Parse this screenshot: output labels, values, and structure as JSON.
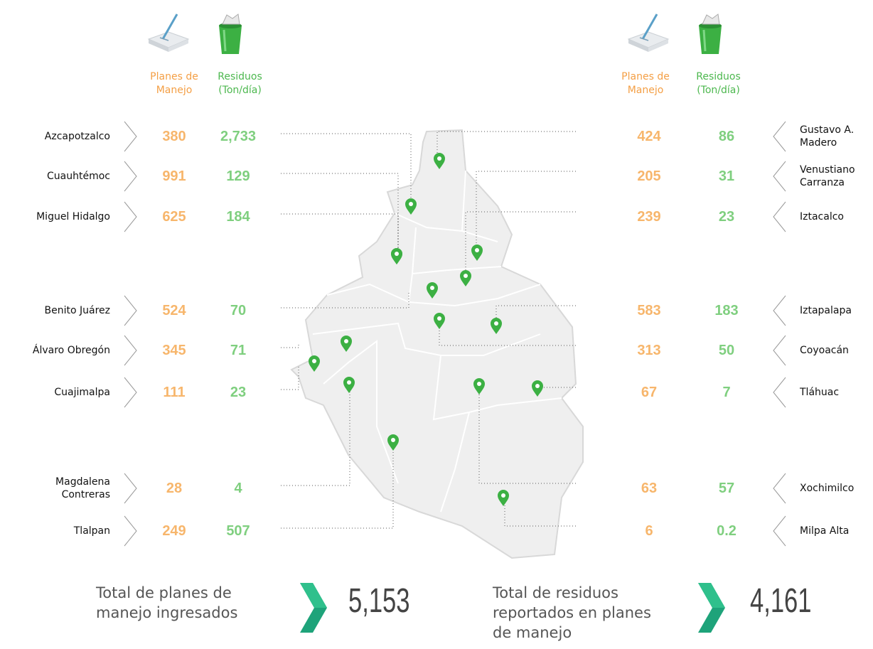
{
  "left_header": {
    "planes": "Planes de Manejo",
    "residuos": "Residuos (Ton/día)"
  },
  "right_header": {
    "planes": "Planes de Manejo",
    "residuos": "Residuos (Ton/día)"
  },
  "left_rows": [
    {
      "name": "Azcapotzalco",
      "planes": "380",
      "residuos": "2,733"
    },
    {
      "name": "Cuauhtémoc",
      "planes": "991",
      "residuos": "129"
    },
    {
      "name": "Miguel Hidalgo",
      "planes": "625",
      "residuos": "184"
    },
    {
      "name": "Benito Juárez",
      "planes": "524",
      "residuos": "70"
    },
    {
      "name": "Álvaro Obregón",
      "planes": "345",
      "residuos": "71"
    },
    {
      "name": "Cuajimalpa",
      "planes": "111",
      "residuos": "23"
    },
    {
      "name": "Magdalena Contreras",
      "planes": "28",
      "residuos": "4"
    },
    {
      "name": "Tlalpan",
      "planes": "249",
      "residuos": "507"
    }
  ],
  "right_rows": [
    {
      "name": "Gustavo A. Madero",
      "planes": "424",
      "residuos": "86"
    },
    {
      "name": "Venustiano Carranza",
      "planes": "205",
      "residuos": "31"
    },
    {
      "name": "Iztacalco",
      "planes": "239",
      "residuos": "23"
    },
    {
      "name": "Iztapalapa",
      "planes": "583",
      "residuos": "183"
    },
    {
      "name": "Coyoacán",
      "planes": "313",
      "residuos": "50"
    },
    {
      "name": "Tláhuac",
      "planes": "67",
      "residuos": "7"
    },
    {
      "name": "Xochimilco",
      "planes": "63",
      "residuos": "57"
    },
    {
      "name": "Milpa Alta",
      "planes": "6",
      "residuos": "0.2"
    }
  ],
  "totals": [
    {
      "label": "Total de planes de manejo ingresados",
      "value": "5,153"
    },
    {
      "label": "Total de residuos reportados en planes de manejo",
      "value": "4,161"
    }
  ]
}
